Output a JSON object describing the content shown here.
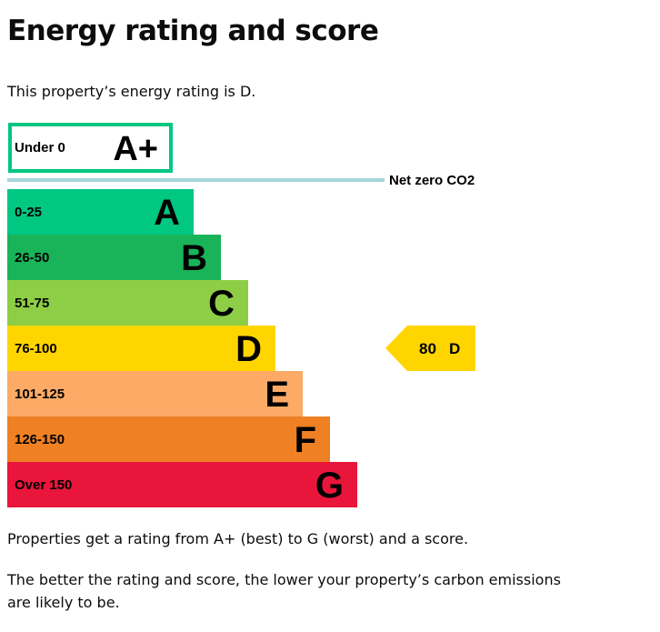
{
  "page": {
    "title": "Energy rating and score",
    "intro": "This property’s energy rating is D.",
    "paragraphs": [
      "Properties get a rating from A+ (best) to G (worst) and a score.",
      "The better the rating and score, the lower your property’s carbon emissions are likely to be."
    ]
  },
  "chart_data": {
    "type": "bar",
    "categories": [
      "A+",
      "A",
      "B",
      "C",
      "D",
      "E",
      "F",
      "G"
    ],
    "bands": [
      {
        "letter": "A+",
        "range": "Under 0",
        "color": "#ffffff",
        "border": "#00c781",
        "text_color": "#000000"
      },
      {
        "letter": "A",
        "range": "0-25",
        "color": "#00c781",
        "text_color": "#000000"
      },
      {
        "letter": "B",
        "range": "26-50",
        "color": "#19b459",
        "text_color": "#000000"
      },
      {
        "letter": "C",
        "range": "51-75",
        "color": "#8dce46",
        "text_color": "#000000"
      },
      {
        "letter": "D",
        "range": "76-100",
        "color": "#ffd500",
        "text_color": "#000000"
      },
      {
        "letter": "E",
        "range": "101-125",
        "color": "#fcaa65",
        "text_color": "#000000"
      },
      {
        "letter": "F",
        "range": "126-150",
        "color": "#ef8023",
        "text_color": "#000000"
      },
      {
        "letter": "G",
        "range": "Over 150",
        "color": "#e9153b",
        "text_color": "#000000"
      }
    ],
    "net_zero_label": "Net zero CO2",
    "net_zero_line_color": "#a5d6dc",
    "current": {
      "score": 80,
      "score_label": "80",
      "rating": "D",
      "color": "#ffd500"
    }
  }
}
